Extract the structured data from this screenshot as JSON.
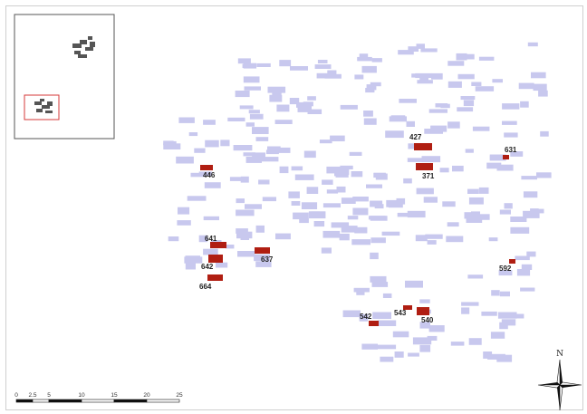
{
  "map": {
    "north_label": "N",
    "colors": {
      "building": "#c8c8ee",
      "highlight": "#b01e12",
      "frame": "#555555",
      "inset_box": "#d43a3a"
    },
    "highlighted_buildings": [
      {
        "id": "427"
      },
      {
        "id": "371"
      },
      {
        "id": "631"
      },
      {
        "id": "446"
      },
      {
        "id": "641"
      },
      {
        "id": "637"
      },
      {
        "id": "642"
      },
      {
        "id": "664"
      },
      {
        "id": "592"
      },
      {
        "id": "543"
      },
      {
        "id": "542"
      },
      {
        "id": "540"
      }
    ],
    "scale_bar": {
      "ticks": [
        "0",
        "2.5",
        "5",
        "10",
        "15",
        "20",
        "25"
      ]
    }
  }
}
